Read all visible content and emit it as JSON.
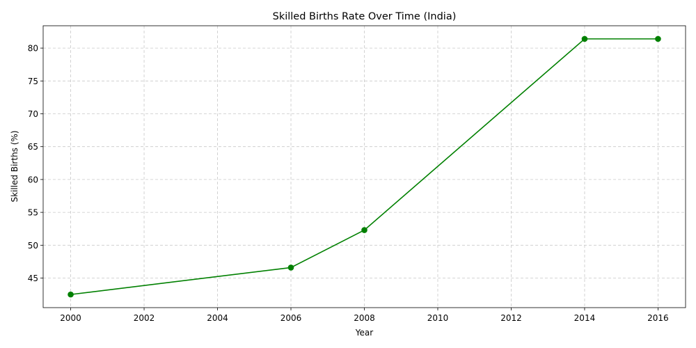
{
  "chart_data": {
    "type": "line",
    "title": "Skilled Births Rate Over Time (India)",
    "xlabel": "Year",
    "ylabel": "Skilled Births (%)",
    "x": [
      2000,
      2006,
      2008,
      2014,
      2016
    ],
    "series": [
      {
        "values": [
          42.5,
          46.6,
          52.3,
          81.4,
          81.4
        ]
      }
    ],
    "xlim": [
      1999.25,
      2016.75
    ],
    "ylim": [
      40.5,
      83.4
    ],
    "xticks": [
      2000,
      2002,
      2004,
      2006,
      2008,
      2010,
      2012,
      2014,
      2016
    ],
    "yticks": [
      45,
      50,
      55,
      60,
      65,
      70,
      75,
      80
    ],
    "grid": true,
    "line_color": "#008000",
    "marker": "circle"
  }
}
